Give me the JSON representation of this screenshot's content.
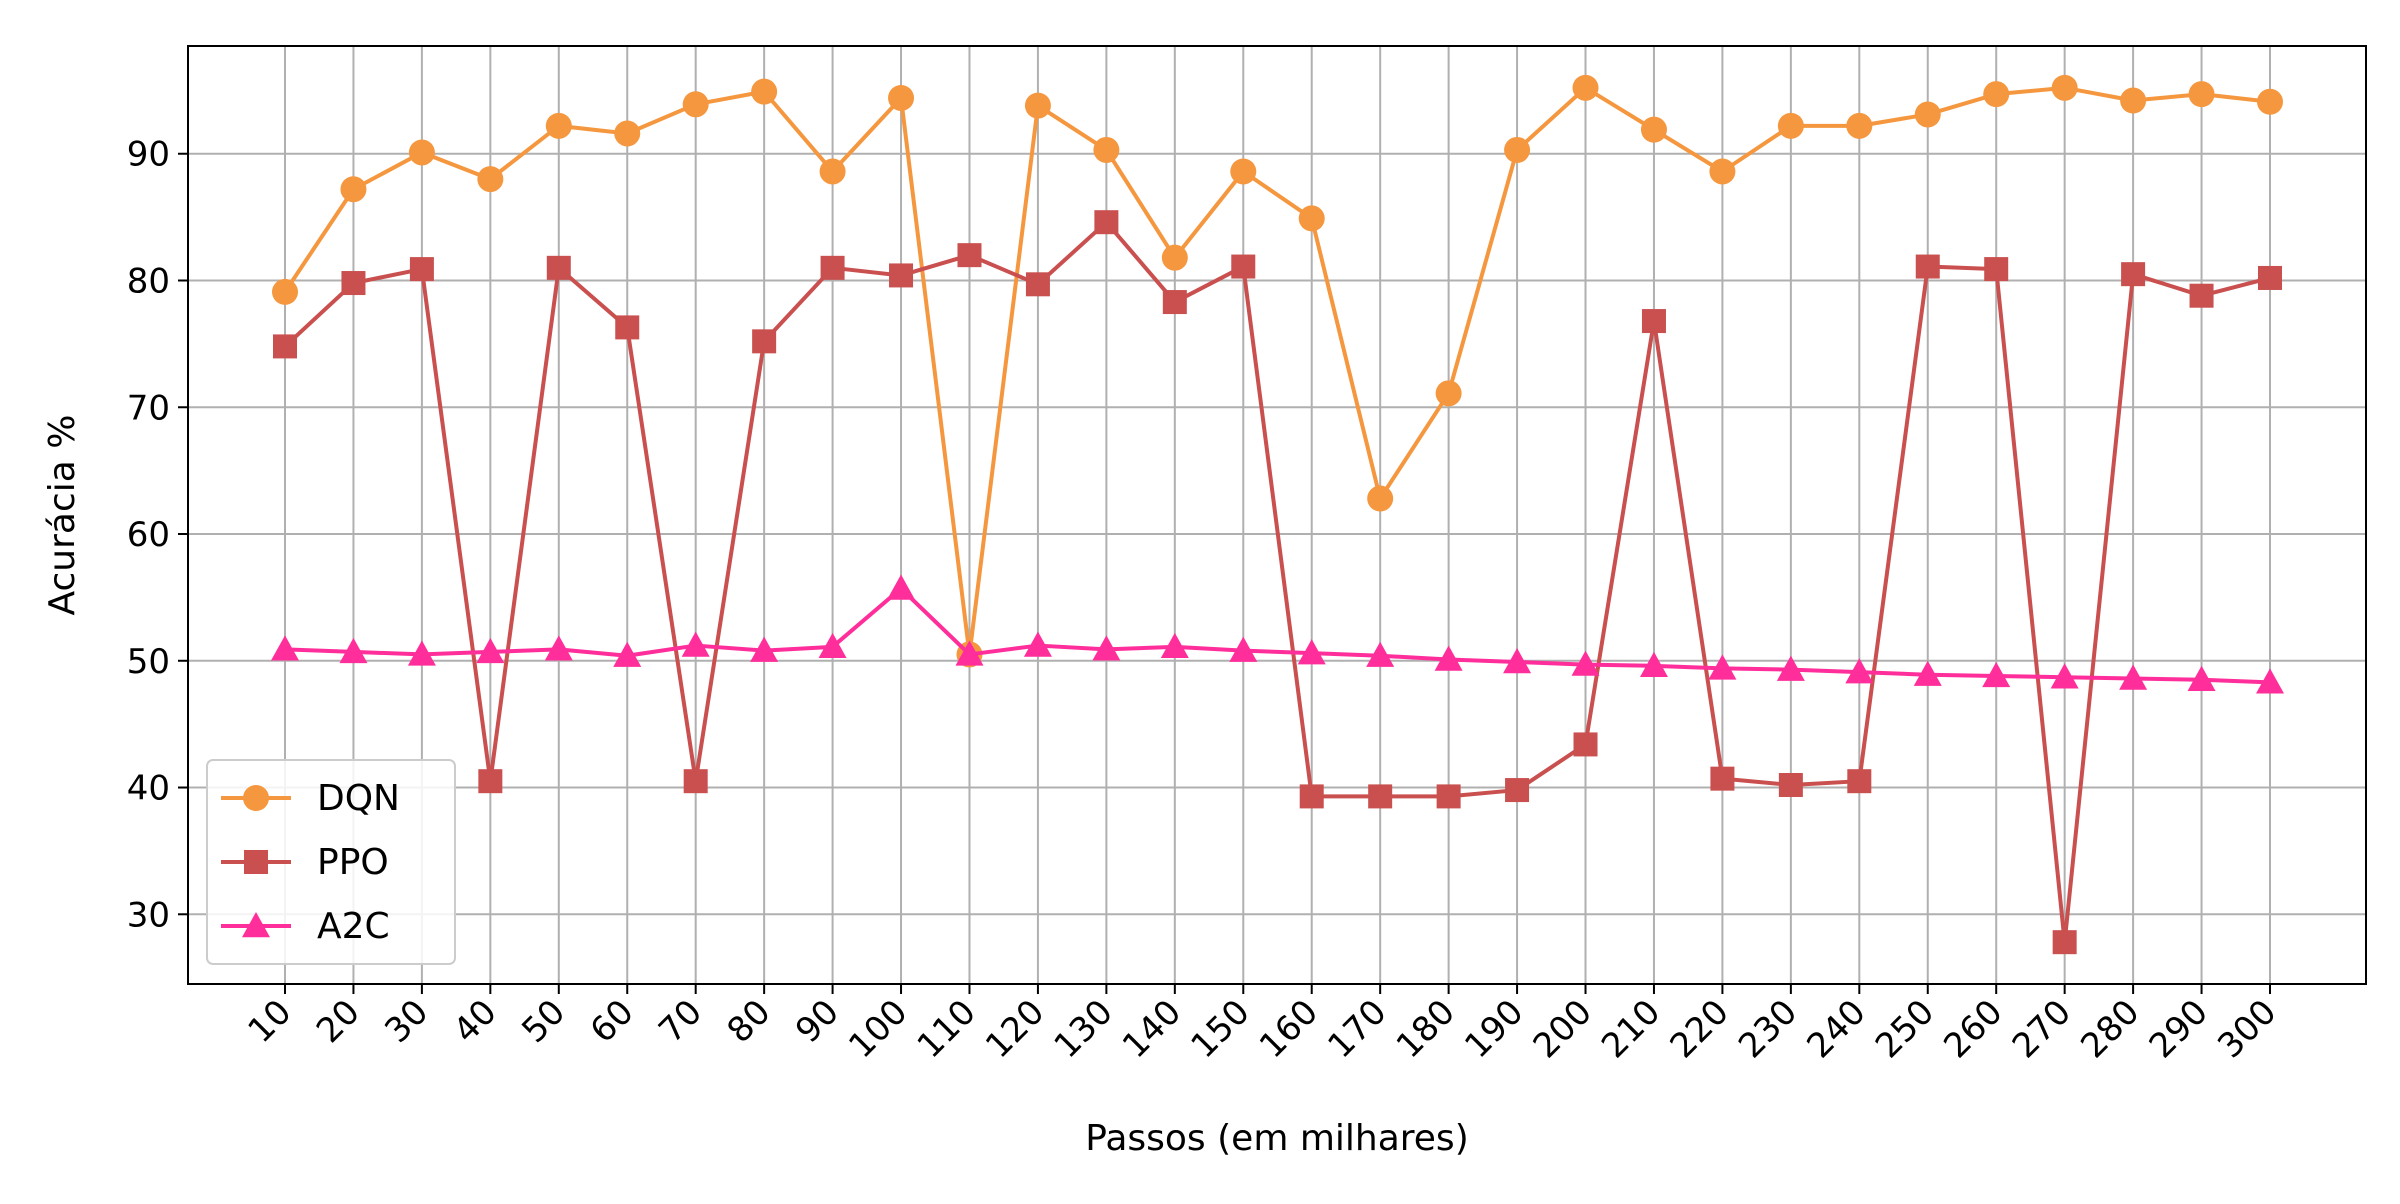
{
  "chart_data": {
    "type": "line",
    "title": "",
    "xlabel": "Passos (em milhares)",
    "ylabel": "Acurácia %",
    "categories": [
      "10",
      "20",
      "30",
      "40",
      "50",
      "60",
      "70",
      "80",
      "90",
      "100",
      "110",
      "120",
      "130",
      "140",
      "150",
      "160",
      "170",
      "180",
      "190",
      "200",
      "210",
      "220",
      "230",
      "240",
      "250",
      "260",
      "270",
      "280",
      "290",
      "300"
    ],
    "ylim": [
      24.5,
      98.5
    ],
    "yticks": [
      30,
      40,
      50,
      60,
      70,
      80,
      90
    ],
    "grid": true,
    "legend_position": "lower-left",
    "series": [
      {
        "name": "DQN",
        "color": "#f5973f",
        "marker": "circle",
        "values": [
          79.1,
          87.2,
          90.1,
          88.0,
          92.2,
          91.6,
          93.9,
          94.9,
          88.6,
          94.4,
          50.5,
          93.8,
          90.3,
          81.8,
          88.6,
          84.9,
          62.8,
          71.1,
          90.3,
          95.2,
          91.9,
          88.6,
          92.2,
          92.2,
          93.1,
          94.7,
          95.2,
          94.2,
          94.7,
          94.1
        ]
      },
      {
        "name": "PPO",
        "color": "#c9504f",
        "marker": "square",
        "values": [
          74.8,
          79.8,
          80.9,
          40.5,
          81.0,
          76.3,
          40.5,
          75.2,
          81.0,
          80.4,
          82.0,
          79.7,
          84.6,
          78.3,
          81.1,
          39.3,
          39.3,
          39.3,
          39.8,
          43.4,
          76.8,
          40.7,
          40.2,
          40.5,
          81.1,
          80.9,
          27.8,
          80.5,
          78.8,
          80.2
        ]
      },
      {
        "name": "A2C",
        "color": "#ff2e9a",
        "marker": "triangle",
        "values": [
          50.9,
          50.7,
          50.5,
          50.7,
          50.9,
          50.4,
          51.2,
          50.8,
          51.1,
          55.7,
          50.5,
          51.2,
          50.9,
          51.1,
          50.8,
          50.6,
          50.4,
          50.1,
          49.9,
          49.7,
          49.6,
          49.4,
          49.3,
          49.1,
          48.9,
          48.8,
          48.7,
          48.6,
          48.5,
          48.3
        ]
      }
    ]
  }
}
